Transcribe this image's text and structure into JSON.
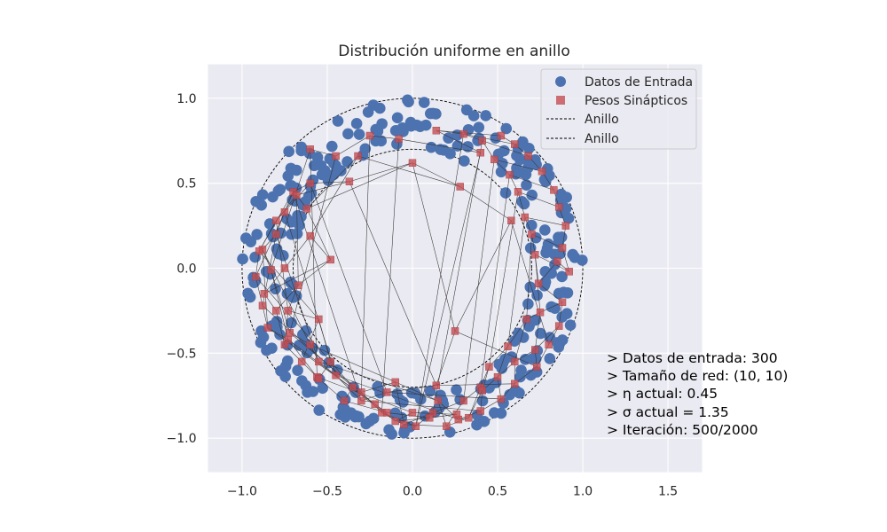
{
  "chart_data": {
    "type": "scatter",
    "title": "Distribución uniforme en anillo",
    "xlabel": "",
    "ylabel": "",
    "xlim": [
      -1.2,
      1.7
    ],
    "ylim": [
      -1.2,
      1.2
    ],
    "xticks": [
      -1.0,
      -0.5,
      0.0,
      0.5,
      1.0,
      1.5
    ],
    "yticks": [
      -1.0,
      -0.5,
      0.0,
      0.5,
      1.0
    ],
    "xtick_labels": [
      "−1.0",
      "−0.5",
      "0.0",
      "0.5",
      "1.0",
      "1.5"
    ],
    "ytick_labels": [
      "−1.0",
      "−0.5",
      "0.0",
      "0.5",
      "1.0"
    ],
    "grid": true,
    "legend_position": "top-right",
    "colors": {
      "background": "#eaeaf2",
      "grid": "#ffffff",
      "input": "#4c72b0",
      "weights": "#c44e52",
      "ring": "#000000"
    },
    "ring": {
      "inner_radius": 0.7,
      "outer_radius": 1.0
    },
    "legend": [
      {
        "label": "Datos de Entrada",
        "marker": "circle"
      },
      {
        "label": "Pesos Sinápticos",
        "marker": "square"
      },
      {
        "label": "Anillo",
        "marker": "dashed-line"
      },
      {
        "label": "Anillo",
        "marker": "dashed-line"
      }
    ],
    "series": [
      {
        "name": "Datos de Entrada",
        "count": 300,
        "sampling": "uniform in annulus r ∈ [0.7, 1.0]",
        "seed": 7
      },
      {
        "name": "Pesos Sinápticos",
        "grid_shape": [
          10,
          10
        ],
        "points": [
          [
            0.85,
            0.04
          ],
          [
            0.92,
            -0.02
          ],
          [
            0.88,
            0.12
          ],
          [
            0.9,
            0.25
          ],
          [
            0.86,
            0.36
          ],
          [
            0.83,
            0.46
          ],
          [
            0.76,
            0.57
          ],
          [
            0.68,
            0.66
          ],
          [
            0.6,
            0.73
          ],
          [
            0.52,
            0.78
          ],
          [
            0.74,
            -0.09
          ],
          [
            0.72,
            0.08
          ],
          [
            0.7,
            0.2
          ],
          [
            0.66,
            0.3
          ],
          [
            0.62,
            0.45
          ],
          [
            0.57,
            0.55
          ],
          [
            0.48,
            0.64
          ],
          [
            0.41,
            0.75
          ],
          [
            0.3,
            0.79
          ],
          [
            0.14,
            0.81
          ],
          [
            0.88,
            -0.2
          ],
          [
            0.75,
            -0.26
          ],
          [
            0.67,
            -0.3
          ],
          [
            0.56,
            -0.46
          ],
          [
            0.45,
            -0.58
          ],
          [
            0.4,
            -0.7
          ],
          [
            0.3,
            -0.78
          ],
          [
            0.12,
            -0.85
          ],
          [
            0.02,
            -0.93
          ],
          [
            0.4,
            0.68
          ],
          [
            0.86,
            -0.34
          ],
          [
            0.72,
            -0.48
          ],
          [
            0.6,
            -0.55
          ],
          [
            0.5,
            -0.64
          ],
          [
            0.41,
            -0.72
          ],
          [
            0.33,
            -0.88
          ],
          [
            0.2,
            -0.93
          ],
          [
            -0.05,
            -0.92
          ],
          [
            -0.18,
            -0.85
          ],
          [
            -0.08,
            0.76
          ],
          [
            0.8,
            -0.45
          ],
          [
            0.73,
            -0.58
          ],
          [
            0.6,
            -0.68
          ],
          [
            0.52,
            -0.77
          ],
          [
            0.4,
            -0.84
          ],
          [
            0.27,
            -0.89
          ],
          [
            0.15,
            -0.78
          ],
          [
            -0.1,
            -0.67
          ],
          [
            -0.3,
            -0.73
          ],
          [
            -0.25,
            0.78
          ],
          [
            0.58,
            0.28
          ],
          [
            0.25,
            -0.37
          ],
          [
            0.14,
            -0.69
          ],
          [
            -0.15,
            -0.73
          ],
          [
            -0.3,
            -0.78
          ],
          [
            -0.45,
            -0.63
          ],
          [
            -0.55,
            -0.55
          ],
          [
            -0.6,
            -0.45
          ],
          [
            -0.72,
            -0.38
          ],
          [
            -0.45,
            0.66
          ],
          [
            0.28,
            0.48
          ],
          [
            0.0,
            0.62
          ],
          [
            -0.37,
            0.51
          ],
          [
            -0.6,
            0.5
          ],
          [
            -0.7,
            0.45
          ],
          [
            -0.75,
            0.33
          ],
          [
            -0.8,
            0.2
          ],
          [
            -0.88,
            0.11
          ],
          [
            -0.83,
            -0.01
          ],
          [
            -0.6,
            0.7
          ],
          [
            -0.32,
            0.66
          ],
          [
            -0.62,
            0.35
          ],
          [
            -0.68,
            0.43
          ],
          [
            -0.8,
            0.28
          ],
          [
            -0.9,
            0.1
          ],
          [
            -0.92,
            -0.05
          ],
          [
            -0.88,
            -0.22
          ],
          [
            -0.85,
            -0.35
          ],
          [
            -0.73,
            -0.42
          ],
          [
            -0.56,
            -0.64
          ],
          [
            -0.6,
            0.19
          ],
          [
            -0.48,
            0.05
          ],
          [
            -0.67,
            -0.1
          ],
          [
            -0.73,
            -0.25
          ],
          [
            -0.55,
            -0.3
          ],
          [
            -0.48,
            -0.55
          ],
          [
            -0.35,
            -0.7
          ],
          [
            -0.22,
            -0.8
          ],
          [
            -0.1,
            -0.9
          ],
          [
            0.0,
            -0.85
          ],
          [
            -0.75,
            0.0
          ],
          [
            -0.87,
            -0.15
          ],
          [
            -0.8,
            -0.25
          ],
          [
            -0.75,
            -0.45
          ],
          [
            -0.65,
            -0.55
          ],
          [
            -0.55,
            -0.65
          ],
          [
            -0.4,
            -0.78
          ],
          [
            -0.15,
            -0.85
          ],
          [
            0.1,
            -0.88
          ],
          [
            0.26,
            -0.86
          ]
        ]
      }
    ]
  },
  "info": {
    "lines": [
      "> Datos de entrada: 300",
      "> Tamaño de red: (10, 10)",
      "> η actual: 0.45",
      "> σ actual = 1.35",
      "> Iteración: 500/2000"
    ]
  }
}
